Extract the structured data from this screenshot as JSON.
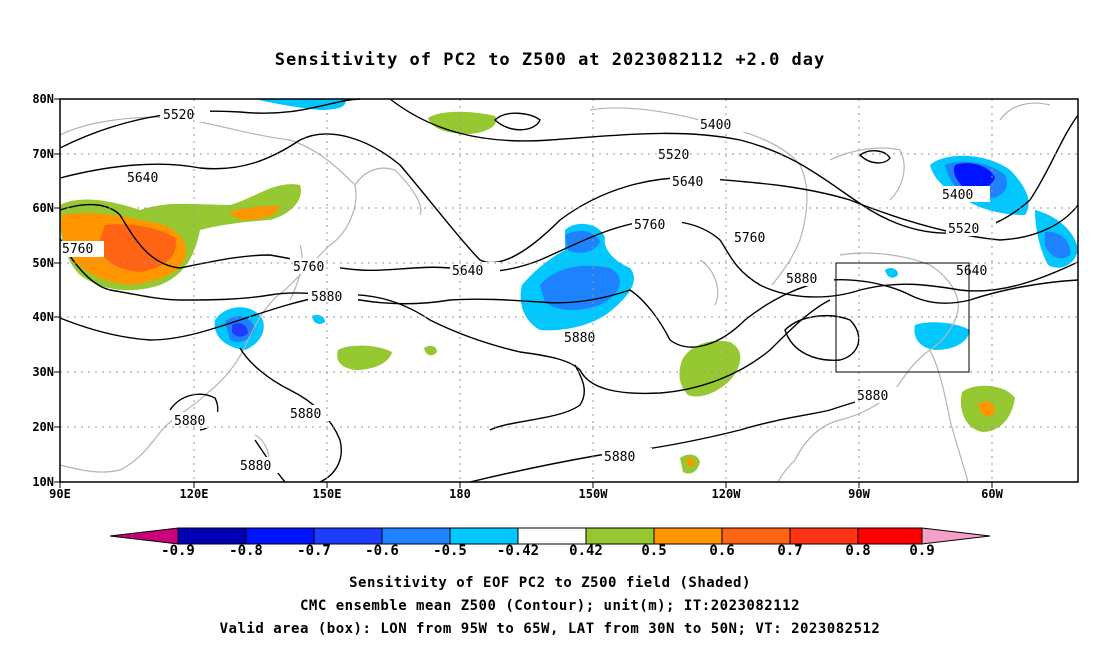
{
  "title": "Sensitivity of PC2 to Z500 at 2023082112 +2.0 day",
  "lat_labels": [
    "80N",
    "70N",
    "60N",
    "50N",
    "40N",
    "30N",
    "20N",
    "10N"
  ],
  "lon_labels": [
    "90E",
    "120E",
    "150E",
    "180",
    "150W",
    "120W",
    "90W",
    "60W"
  ],
  "contour_labels": [
    "5400",
    "5520",
    "5640",
    "5760",
    "5880"
  ],
  "colorbar": {
    "ticks": [
      "-0.9",
      "-0.8",
      "-0.7",
      "-0.6",
      "-0.5",
      "-0.42",
      "0.42",
      "0.5",
      "0.6",
      "0.7",
      "0.8",
      "0.9"
    ],
    "colors": [
      "#c8007a",
      "#0000b4",
      "#0014ff",
      "#1e3cff",
      "#1e82ff",
      "#00c8ff",
      "#ffffff",
      "#96c832",
      "#ff9600",
      "#ff6414",
      "#ff3214",
      "#ff0000",
      "#f5a0c8"
    ]
  },
  "captions": {
    "line1": "Sensitivity of EOF PC2 to Z500 field (Shaded)",
    "line2": "CMC ensemble mean Z500 (Contour); unit(m); IT:2023082112",
    "line3": "Valid area (box): LON from 95W to 65W, LAT from 30N to 50N; VT: 2023082512"
  },
  "valid_area": {
    "lon": "95W to 65W",
    "lat": "30N to 50N"
  }
}
